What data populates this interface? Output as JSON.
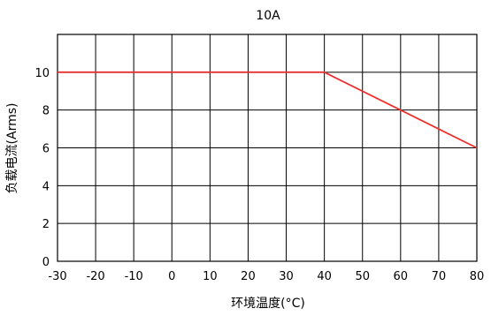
{
  "chart_data": {
    "type": "line",
    "title": "10A",
    "xlabel": "环境温度(°C)",
    "ylabel": "负载电流(Arms)",
    "xlim": [
      -30,
      80
    ],
    "ylim": [
      0,
      12
    ],
    "xticks": [
      -30,
      -20,
      -10,
      0,
      10,
      20,
      30,
      40,
      50,
      60,
      70,
      80
    ],
    "yticks": [
      0,
      2,
      4,
      6,
      8,
      10
    ],
    "grid": true,
    "colors": {
      "line": "#e8312e",
      "grid": "#000000"
    },
    "series": [
      {
        "x": [
          -30,
          40,
          80
        ],
        "y": [
          10,
          10,
          6
        ]
      }
    ]
  }
}
